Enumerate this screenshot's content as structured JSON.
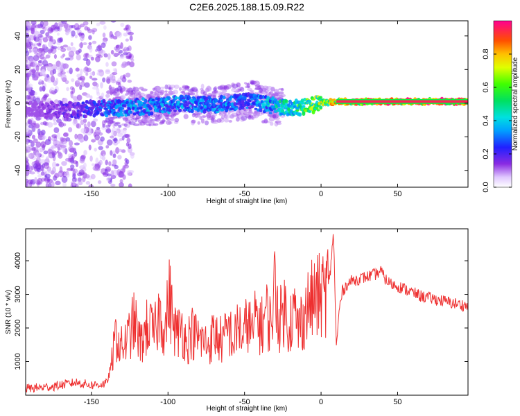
{
  "title": "C2E6.2025.188.15.09.R22",
  "chart_data": [
    {
      "type": "heatmap",
      "xlabel": "Height of straight line (km)",
      "ylabel": "Frequency (Hz)",
      "xlim": [
        -193,
        96
      ],
      "ylim": [
        -50,
        49
      ],
      "xticks": [
        -150,
        -100,
        -50,
        0,
        50
      ],
      "xtick_labels": [
        "-150",
        "-100",
        "-50",
        "0",
        "50"
      ],
      "yticks": [
        -40,
        -20,
        0,
        20,
        40
      ],
      "ytick_labels": [
        "-40",
        "-20",
        "0",
        "20",
        "40"
      ],
      "colorbar": {
        "label": "Normalized spectral amplitude",
        "range": [
          0,
          1
        ],
        "ticks": [
          0.0,
          0.2,
          0.4,
          0.6,
          0.8
        ],
        "tick_labels": [
          "0.0",
          "0.2",
          "0.4",
          "0.6",
          "0.8"
        ]
      },
      "ridge": {
        "x": [
          -190,
          -175,
          -160,
          -150,
          -140,
          -130,
          -120,
          -110,
          -100,
          -90,
          -80,
          -70,
          -60,
          -50,
          -45,
          -40,
          -35,
          -30,
          -20,
          -10,
          0,
          10,
          20,
          30,
          50,
          70,
          96
        ],
        "y": [
          -4,
          -4,
          -4,
          -3,
          -3,
          -3,
          -2,
          -2,
          -1,
          0,
          -1,
          -1,
          0,
          1,
          2,
          0,
          -1,
          -2,
          -3,
          -2,
          0,
          1,
          1,
          1,
          1,
          1,
          1
        ],
        "amplitude": [
          0.1,
          0.15,
          0.2,
          0.25,
          0.3,
          0.35,
          0.35,
          0.35,
          0.35,
          0.35,
          0.35,
          0.35,
          0.35,
          0.3,
          0.3,
          0.35,
          0.4,
          0.45,
          0.5,
          0.6,
          0.7,
          0.8,
          0.85,
          0.9,
          0.92,
          0.95,
          0.95
        ]
      }
    },
    {
      "type": "line",
      "xlabel": "Height of straight line (km)",
      "ylabel": "SNR (10 * v/v)",
      "xlim": [
        -193,
        96
      ],
      "ylim": [
        0,
        4950
      ],
      "xticks": [
        -150,
        -100,
        -50,
        0,
        50
      ],
      "xtick_labels": [
        "-150",
        "-100",
        "-50",
        "0",
        "50"
      ],
      "yticks": [
        1000,
        2000,
        3000,
        4000
      ],
      "ytick_labels": [
        "1000",
        "2000",
        "3000",
        "4000"
      ],
      "color": "#ee3030",
      "series": [
        {
          "x": [
            -193,
            -185,
            -175,
            -168,
            -160,
            -150,
            -145,
            -140,
            -137,
            -134,
            -131,
            -127,
            -122,
            -118,
            -113,
            -109,
            -105,
            -102,
            -99,
            -97,
            -94,
            -91,
            -88,
            -85,
            -81,
            -77,
            -74,
            -70,
            -67,
            -64,
            -60,
            -57,
            -54,
            -51,
            -48,
            -45,
            -42,
            -39,
            -36,
            -33,
            -30,
            -27,
            -24,
            -21,
            -18,
            -15,
            -12,
            -9,
            -6,
            -3,
            0,
            3,
            6,
            8,
            9,
            10,
            12,
            14,
            17,
            20,
            24,
            28,
            32,
            36,
            39,
            42,
            46,
            50,
            55,
            60,
            65,
            70,
            75,
            80,
            85,
            90,
            96
          ],
          "y": [
            200,
            220,
            260,
            320,
            380,
            300,
            320,
            350,
            900,
            1800,
            1400,
            1600,
            2200,
            1500,
            2100,
            1800,
            2500,
            1900,
            3000,
            2200,
            1800,
            2100,
            1500,
            1900,
            1700,
            1600,
            1500,
            1800,
            1700,
            1600,
            2000,
            1500,
            2200,
            1600,
            2300,
            1800,
            2400,
            2000,
            2500,
            2100,
            3300,
            2200,
            2600,
            2100,
            2500,
            2000,
            2300,
            2600,
            2800,
            2900,
            2950,
            3100,
            3600,
            4900,
            3300,
            1400,
            2600,
            3100,
            3300,
            3400,
            3450,
            3500,
            3550,
            3600,
            3700,
            3450,
            3300,
            3250,
            3150,
            3050,
            2950,
            2900,
            2850,
            2800,
            2750,
            2700,
            2650
          ]
        }
      ]
    }
  ]
}
